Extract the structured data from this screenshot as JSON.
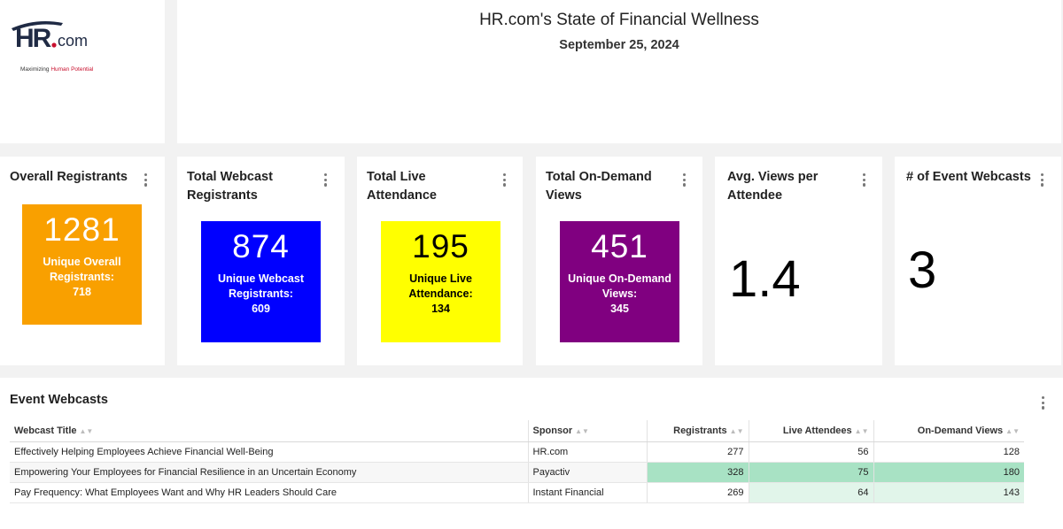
{
  "logo": {
    "text": "HR.com",
    "tagline_pre": "Maximizing ",
    "tagline_accent": "Human Potential"
  },
  "header": {
    "title": "HR.com's State of Financial Wellness",
    "date": "September 25, 2024"
  },
  "kpis": [
    {
      "title": "Overall Registrants",
      "value": "1281",
      "sub_label": "Unique Overall Registrants:",
      "sub_value": "718",
      "color": "#f9a000"
    },
    {
      "title": "Total Webcast Registrants",
      "value": "874",
      "sub_label": "Unique Webcast Registrants:",
      "sub_value": "609",
      "color": "#0000ff"
    },
    {
      "title": "Total Live Attendance",
      "value": "195",
      "sub_label": "Unique Live Attendance:",
      "sub_value": "134",
      "color": "#ffff00"
    },
    {
      "title": "Total On-Demand Views",
      "value": "451",
      "sub_label": "Unique On-Demand Views:",
      "sub_value": "345",
      "color": "#800080"
    },
    {
      "title": "Avg. Views per Attendee",
      "value": "1.4"
    },
    {
      "title": "# of Event Webcasts",
      "value": "3"
    }
  ],
  "webcasts": {
    "title": "Event Webcasts",
    "columns": [
      "Webcast Title",
      "Sponsor",
      "Registrants",
      "Live Attendees",
      "On-Demand Views"
    ],
    "rows": [
      {
        "title": "Effectively Helping Employees Achieve Financial Well-Being",
        "sponsor": "HR.com",
        "registrants": "277",
        "live": "56",
        "ondemand": "128"
      },
      {
        "title": "Empowering Your Employees for Financial Resilience in an Uncertain Economy",
        "sponsor": "Payactiv",
        "registrants": "328",
        "live": "75",
        "ondemand": "180"
      },
      {
        "title": "Pay Frequency: What Employees Want and Why HR Leaders Should Care",
        "sponsor": "Instant Financial",
        "registrants": "269",
        "live": "64",
        "ondemand": "143"
      }
    ]
  },
  "colors": {
    "heat_high": "#a8e2c4",
    "heat_low": "#e1f5ea",
    "brand_red": "#c8102e",
    "brand_navy": "#1f2a44"
  }
}
